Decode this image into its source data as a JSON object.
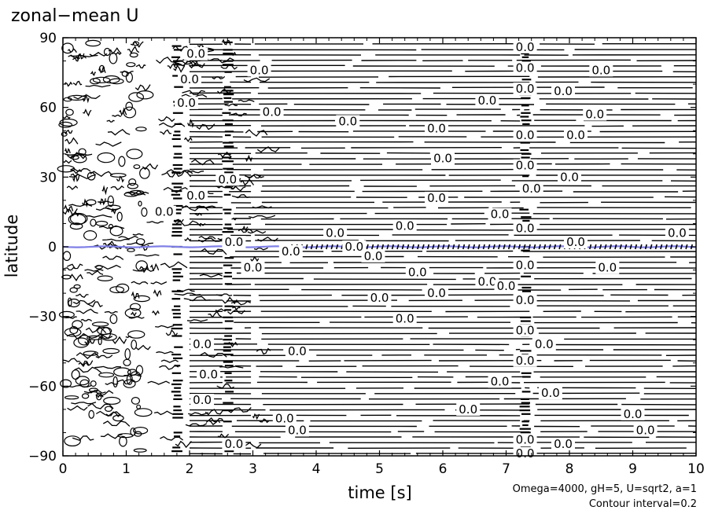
{
  "chart_data": {
    "type": "contour",
    "title": "zonal−mean U",
    "xlabel": "time [s]",
    "ylabel": "latitude",
    "xlim": [
      0,
      10
    ],
    "ylim": [
      -90,
      90
    ],
    "x_ticks": [
      "0",
      "1",
      "2",
      "3",
      "4",
      "5",
      "6",
      "7",
      "8",
      "9",
      "10"
    ],
    "y_ticks": [
      "−90",
      "−60",
      "−30",
      "0",
      "30",
      "60",
      "90"
    ],
    "y_tick_values": [
      -90,
      -60,
      -30,
      0,
      30,
      60,
      90
    ],
    "contour_label_text": "0.0",
    "contour_labels": [
      {
        "t": 2.1,
        "lat": 83
      },
      {
        "t": 2.0,
        "lat": 72
      },
      {
        "t": 1.95,
        "lat": 62
      },
      {
        "t": 3.1,
        "lat": 76
      },
      {
        "t": 3.3,
        "lat": 58
      },
      {
        "t": 4.5,
        "lat": 54
      },
      {
        "t": 5.9,
        "lat": 51
      },
      {
        "t": 6.0,
        "lat": 38
      },
      {
        "t": 7.3,
        "lat": 86
      },
      {
        "t": 7.3,
        "lat": 77
      },
      {
        "t": 7.3,
        "lat": 68
      },
      {
        "t": 8.5,
        "lat": 76
      },
      {
        "t": 7.9,
        "lat": 67
      },
      {
        "t": 6.7,
        "lat": 63
      },
      {
        "t": 8.4,
        "lat": 57
      },
      {
        "t": 8.1,
        "lat": 48
      },
      {
        "t": 8.0,
        "lat": 30
      },
      {
        "t": 7.3,
        "lat": 48
      },
      {
        "t": 7.3,
        "lat": 35
      },
      {
        "t": 7.4,
        "lat": 25
      },
      {
        "t": 5.9,
        "lat": 21
      },
      {
        "t": 6.9,
        "lat": 14
      },
      {
        "t": 7.3,
        "lat": 8
      },
      {
        "t": 5.4,
        "lat": 9
      },
      {
        "t": 4.3,
        "lat": 6
      },
      {
        "t": 2.7,
        "lat": 2
      },
      {
        "t": 1.6,
        "lat": 15
      },
      {
        "t": 2.1,
        "lat": 22
      },
      {
        "t": 2.6,
        "lat": 29
      },
      {
        "t": 4.6,
        "lat": 0
      },
      {
        "t": 4.9,
        "lat": -4
      },
      {
        "t": 3.6,
        "lat": -2
      },
      {
        "t": 7.3,
        "lat": -8
      },
      {
        "t": 8.6,
        "lat": -9
      },
      {
        "t": 8.1,
        "lat": 2
      },
      {
        "t": 9.7,
        "lat": 6
      },
      {
        "t": 3.0,
        "lat": -9
      },
      {
        "t": 5.6,
        "lat": -11
      },
      {
        "t": 6.7,
        "lat": -15
      },
      {
        "t": 7.0,
        "lat": -17
      },
      {
        "t": 5.0,
        "lat": -22
      },
      {
        "t": 5.9,
        "lat": -20
      },
      {
        "t": 5.4,
        "lat": -31
      },
      {
        "t": 7.3,
        "lat": -23
      },
      {
        "t": 7.3,
        "lat": -36
      },
      {
        "t": 7.6,
        "lat": -42
      },
      {
        "t": 7.3,
        "lat": -49
      },
      {
        "t": 2.2,
        "lat": -42
      },
      {
        "t": 3.7,
        "lat": -45
      },
      {
        "t": 2.3,
        "lat": -55
      },
      {
        "t": 6.9,
        "lat": -58
      },
      {
        "t": 7.7,
        "lat": -63
      },
      {
        "t": 2.2,
        "lat": -66
      },
      {
        "t": 6.4,
        "lat": -70
      },
      {
        "t": 3.5,
        "lat": -74
      },
      {
        "t": 3.7,
        "lat": -79
      },
      {
        "t": 9.0,
        "lat": -72
      },
      {
        "t": 9.2,
        "lat": -79
      },
      {
        "t": 7.3,
        "lat": -83
      },
      {
        "t": 7.9,
        "lat": -85
      },
      {
        "t": 2.7,
        "lat": -85
      },
      {
        "t": 7.3,
        "lat": -89
      }
    ],
    "blue_contour_lat": 0
  },
  "annotations": {
    "params": "Omega=4000, gH=5, U=sqrt2, a=1",
    "interval": "Contour interval=0.2"
  },
  "colors": {
    "contour": "#000000",
    "blue_contour": "#7f7fe6",
    "background": "#ffffff"
  }
}
